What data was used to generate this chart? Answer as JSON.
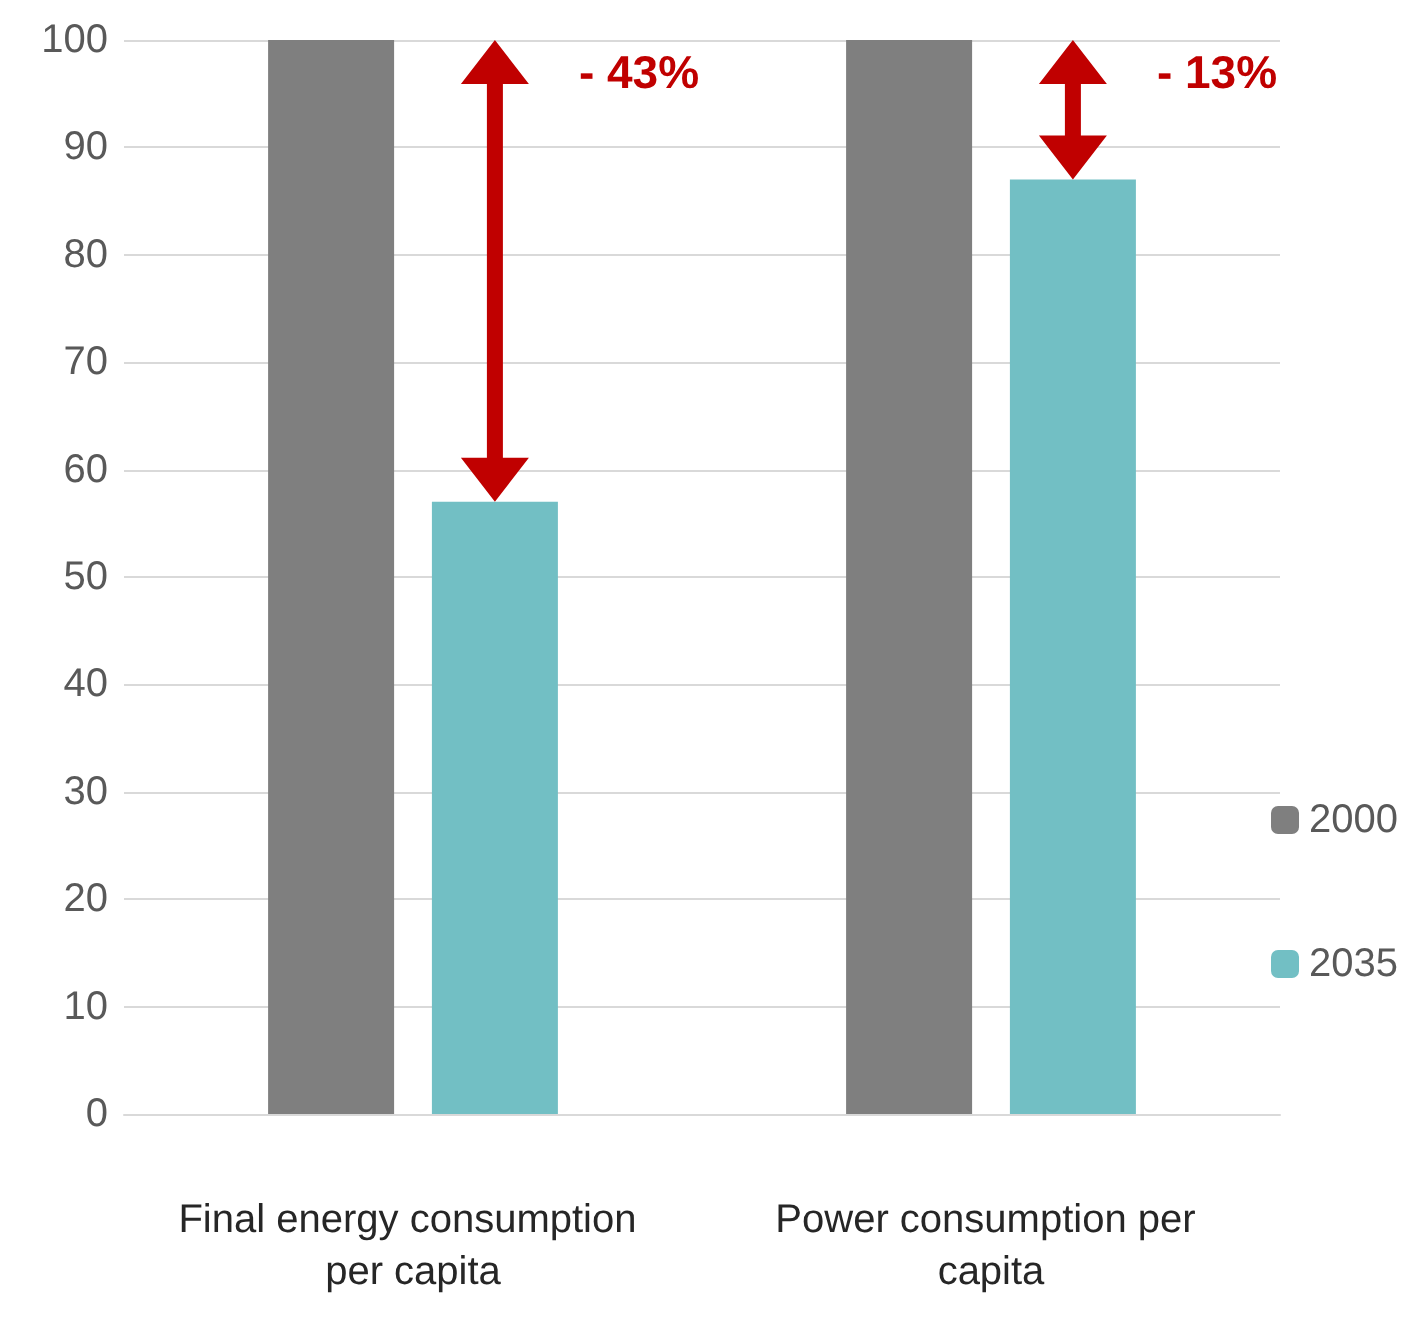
{
  "chart_data": {
    "type": "bar",
    "categories": [
      "Final energy consumption per capita",
      "Power consumption per capita"
    ],
    "series": [
      {
        "name": "2000",
        "color": "#7f7f7f",
        "values": [
          100,
          100
        ]
      },
      {
        "name": "2035",
        "color": "#72bfc4",
        "values": [
          57,
          87
        ]
      }
    ],
    "ylim": [
      0,
      100
    ],
    "yticks": [
      0,
      10,
      20,
      30,
      40,
      50,
      60,
      70,
      80,
      90,
      100
    ],
    "grid": "y",
    "legend": "right",
    "annotations": [
      "- 43%",
      "- 13%"
    ]
  }
}
